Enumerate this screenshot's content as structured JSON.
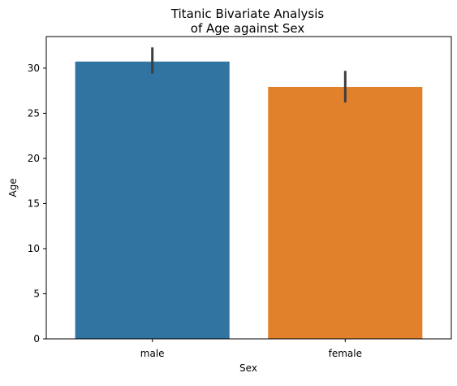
{
  "chart_data": {
    "type": "bar",
    "title_lines": [
      "Titanic Bivariate Analysis",
      "of Age against Sex"
    ],
    "xlabel": "Sex",
    "ylabel": "Age",
    "categories": [
      "male",
      "female"
    ],
    "values": [
      30.73,
      27.92
    ],
    "error_bars": [
      {
        "low": 29.4,
        "high": 32.3
      },
      {
        "low": 26.2,
        "high": 29.7
      }
    ],
    "colors": [
      "#3274a1",
      "#e1812c"
    ],
    "error_bar_color": "#3d3d3d",
    "ylim": [
      0,
      33.5
    ],
    "yticks": [
      0,
      5,
      10,
      15,
      20,
      25,
      30
    ],
    "grid": false,
    "legend": "none"
  }
}
